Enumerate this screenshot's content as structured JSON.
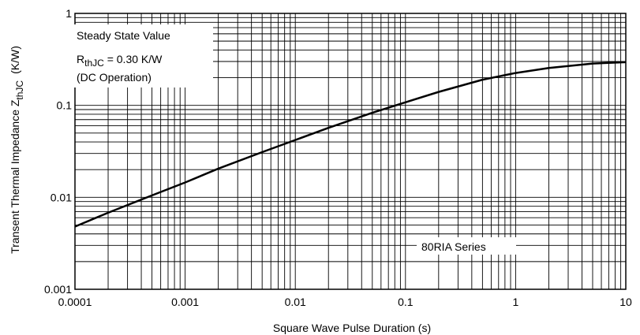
{
  "chart_data": {
    "type": "line",
    "title": "",
    "xlabel": "Square Wave Pulse Duration (s)",
    "ylabel": {
      "prefix": "Transent Thermal Impedance Z",
      "subscript": "thJC",
      "unit": "(K/W)"
    },
    "xscale": "log",
    "yscale": "log",
    "xlim": [
      0.0001,
      10
    ],
    "ylim": [
      0.001,
      1
    ],
    "grid": true,
    "x_ticks": [
      "0.0001",
      "0.001",
      "0.01",
      "0.1",
      "1",
      "10"
    ],
    "y_ticks": [
      "0.001",
      "0.01",
      "0.1",
      "1"
    ],
    "annotations": {
      "steady_state": "Steady State Value",
      "rth_prefix": "R",
      "rth_sub": "thJC",
      "rth_value": " = 0.30 K/W",
      "dc": "(DC Operation)",
      "series_label": "80RIA Series"
    },
    "series": [
      {
        "x": [
          0.0001,
          0.0002,
          0.0005,
          0.001,
          0.002,
          0.005,
          0.01,
          0.02,
          0.05,
          0.1,
          0.2,
          0.5,
          1,
          2,
          5,
          10
        ],
        "y": [
          0.0048,
          0.0068,
          0.0105,
          0.0145,
          0.0205,
          0.031,
          0.042,
          0.057,
          0.083,
          0.108,
          0.14,
          0.19,
          0.225,
          0.255,
          0.285,
          0.295
        ]
      }
    ]
  }
}
